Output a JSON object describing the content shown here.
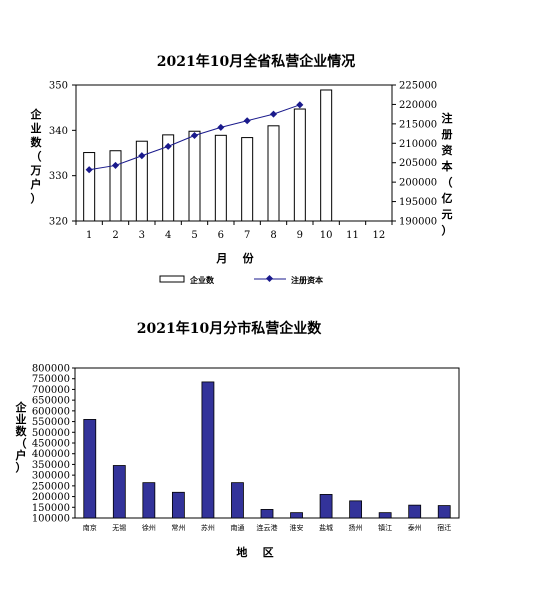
{
  "chart_data": [
    {
      "type": "bar+line",
      "title": "2021年10月全省私营企业情况",
      "xlabel": "月    份",
      "ylabel_left": "企业数（万户）",
      "ylabel_right": "注册资本（亿元）",
      "categories": [
        "1",
        "2",
        "3",
        "4",
        "5",
        "6",
        "7",
        "8",
        "9",
        "10",
        "11",
        "12"
      ],
      "ylim_left": [
        320,
        350
      ],
      "yticks_left": [
        "320",
        "330",
        "340",
        "350"
      ],
      "ylim_right": [
        190000,
        225000
      ],
      "yticks_right": [
        "190000",
        "195000",
        "200000",
        "205000",
        "210000",
        "215000",
        "220000",
        "225000"
      ],
      "series": [
        {
          "name": "企业数",
          "kind": "bar",
          "values": [
            335.1,
            335.5,
            337.6,
            339.0,
            339.8,
            338.9,
            338.4,
            341.0,
            344.7,
            348.9,
            null,
            null
          ]
        },
        {
          "name": "注册资本",
          "kind": "line",
          "values": [
            203200,
            204300,
            206800,
            209200,
            212000,
            214100,
            215800,
            217500,
            219900,
            null,
            null,
            null
          ]
        }
      ],
      "legend_position": "bottom",
      "colors": {
        "bar_fill": "#ffffff",
        "bar_stroke": "#000000",
        "line": "#1a1a8c"
      }
    },
    {
      "type": "bar",
      "title": "2021年10月分市私营企业数",
      "xlabel": "地    区",
      "ylabel": "企业数（户）",
      "categories": [
        "南京",
        "无锡",
        "徐州",
        "常州",
        "苏州",
        "南通",
        "连云港",
        "淮安",
        "盐城",
        "扬州",
        "镇江",
        "泰州",
        "宿迁"
      ],
      "values": [
        560000,
        345000,
        265000,
        220000,
        735000,
        265000,
        140000,
        125000,
        210000,
        180000,
        125000,
        160000,
        158000
      ],
      "ylim": [
        100000,
        800000
      ],
      "yticks": [
        "100000",
        "150000",
        "200000",
        "250000",
        "300000",
        "350000",
        "400000",
        "450000",
        "500000",
        "550000",
        "600000",
        "650000",
        "700000",
        "750000",
        "800000"
      ],
      "colors": {
        "bar_fill": "#33339a",
        "bar_stroke": "#000000"
      }
    }
  ]
}
